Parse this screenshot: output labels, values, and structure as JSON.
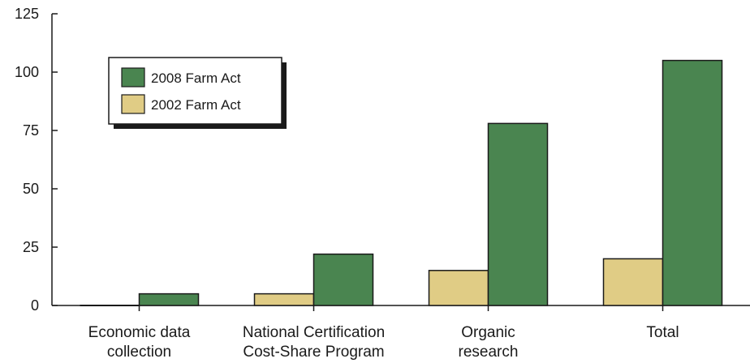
{
  "chart_data": {
    "type": "bar",
    "categories": [
      [
        "Economic data",
        "collection"
      ],
      [
        "National Certification",
        "Cost-Share Program"
      ],
      [
        "Organic",
        "research"
      ],
      [
        "Total"
      ]
    ],
    "series": [
      {
        "name": "2002 Farm Act",
        "values": [
          0,
          5,
          15,
          20
        ]
      },
      {
        "name": "2008 Farm Act",
        "values": [
          5,
          22,
          78,
          105
        ]
      }
    ],
    "yticks": [
      "0",
      "25",
      "50",
      "75",
      "100",
      "125"
    ],
    "ylim": [
      0,
      125
    ],
    "grid": false,
    "legend_position": "top-left",
    "colors": {
      "2002 Farm Act": "#e0cc85",
      "2008 Farm Act": "#4a8550",
      "stroke": "#1a1a1a"
    }
  }
}
